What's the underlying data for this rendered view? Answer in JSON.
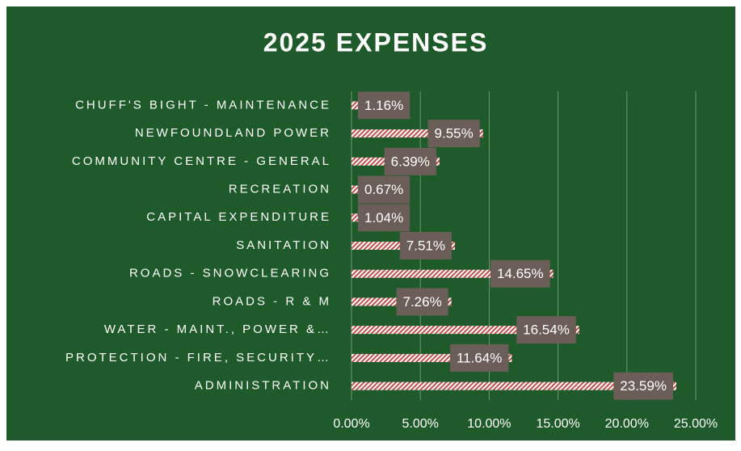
{
  "chart_data": {
    "type": "barh",
    "title": "2025 EXPENSES",
    "categories": [
      "CHUFF'S BIGHT - MAINTENANCE",
      "NEWFOUNDLAND POWER",
      "COMMUNITY CENTRE - GENERAL",
      "RECREATION",
      "CAPITAL EXPENDITURE",
      "SANITATION",
      "ROADS - SNOWCLEARING",
      "ROADS - R & M",
      "WATER - MAINT., POWER &…",
      "PROTECTION - FIRE, SECURITY…",
      "ADMINISTRATION"
    ],
    "values": [
      1.16,
      9.55,
      6.39,
      0.67,
      1.04,
      7.51,
      14.65,
      7.26,
      16.54,
      11.64,
      23.59
    ],
    "value_labels": [
      "1.16%",
      "9.55%",
      "6.39%",
      "0.67%",
      "1.04%",
      "7.51%",
      "14.65%",
      "7.26%",
      "16.54%",
      "11.64%",
      "23.59%"
    ],
    "xlim": [
      0,
      25
    ],
    "xticks": [
      {
        "value": 0,
        "label": "0.00%"
      },
      {
        "value": 5,
        "label": "5.00%"
      },
      {
        "value": 10,
        "label": "10.00%"
      },
      {
        "value": 15,
        "label": "15.00%"
      },
      {
        "value": 20,
        "label": "20.00%"
      },
      {
        "value": 25,
        "label": "25.00%"
      }
    ],
    "grid": true,
    "color": "#c0504d"
  }
}
